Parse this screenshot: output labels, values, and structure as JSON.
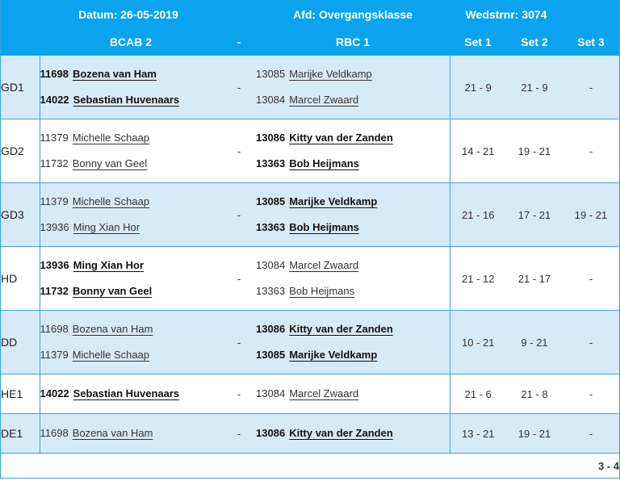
{
  "header": {
    "date": "Datum: 26-05-2019",
    "division": "Afd: Overgangsklasse",
    "match_no": "Wedstrnr: 3074",
    "home_team": "BCAB 2",
    "separator": "-",
    "away_team": "RBC 1",
    "set1": "Set 1",
    "set2": "Set 2",
    "set3": "Set 3"
  },
  "games": [
    {
      "code": "GD1",
      "separator": "-",
      "home": [
        {
          "num": "11698",
          "name": "Bozena van Ham",
          "win": true
        },
        {
          "num": "14022",
          "name": "Sebastian Huvenaars",
          "win": true
        }
      ],
      "away": [
        {
          "num": "13085",
          "name": "Marijke Veldkamp",
          "win": false
        },
        {
          "num": "13084",
          "name": "Marcel Zwaard",
          "win": false
        }
      ],
      "sets": [
        "21 - 9",
        "21 - 9",
        "-"
      ]
    },
    {
      "code": "GD2",
      "separator": "-",
      "home": [
        {
          "num": "11379",
          "name": "Michelle Schaap",
          "win": false
        },
        {
          "num": "11732",
          "name": "Bonny van Geel",
          "win": false
        }
      ],
      "away": [
        {
          "num": "13086",
          "name": "Kitty van der Zanden",
          "win": true
        },
        {
          "num": "13363",
          "name": "Bob Heijmans",
          "win": true
        }
      ],
      "sets": [
        "14 - 21",
        "19 - 21",
        "-"
      ]
    },
    {
      "code": "GD3",
      "separator": "-",
      "home": [
        {
          "num": "11379",
          "name": "Michelle Schaap",
          "win": false
        },
        {
          "num": "13936",
          "name": "Ming Xian Hor",
          "win": false
        }
      ],
      "away": [
        {
          "num": "13085",
          "name": "Marijke Veldkamp",
          "win": true
        },
        {
          "num": "13363",
          "name": "Bob Heijmans",
          "win": true
        }
      ],
      "sets": [
        "21 - 16",
        "17 - 21",
        "19 - 21"
      ]
    },
    {
      "code": "HD",
      "separator": "-",
      "home": [
        {
          "num": "13936",
          "name": "Ming Xian Hor",
          "win": true
        },
        {
          "num": "11732",
          "name": "Bonny van Geel",
          "win": true
        }
      ],
      "away": [
        {
          "num": "13084",
          "name": "Marcel Zwaard",
          "win": false
        },
        {
          "num": "13363",
          "name": "Bob Heijmans",
          "win": false
        }
      ],
      "sets": [
        "21 - 12",
        "21 - 17",
        "-"
      ]
    },
    {
      "code": "DD",
      "separator": "-",
      "home": [
        {
          "num": "11698",
          "name": "Bozena van Ham",
          "win": false
        },
        {
          "num": "11379",
          "name": "Michelle Schaap",
          "win": false
        }
      ],
      "away": [
        {
          "num": "13086",
          "name": "Kitty van der Zanden",
          "win": true
        },
        {
          "num": "13085",
          "name": "Marijke Veldkamp",
          "win": true
        }
      ],
      "sets": [
        "10 - 21",
        "9 - 21",
        "-"
      ]
    },
    {
      "code": "HE1",
      "separator": "-",
      "home": [
        {
          "num": "14022",
          "name": "Sebastian Huvenaars",
          "win": true
        }
      ],
      "away": [
        {
          "num": "13084",
          "name": "Marcel Zwaard",
          "win": false
        }
      ],
      "sets": [
        "21 - 6",
        "21 - 8",
        "-"
      ]
    },
    {
      "code": "DE1",
      "separator": "-",
      "home": [
        {
          "num": "11698",
          "name": "Bozena van Ham",
          "win": false
        }
      ],
      "away": [
        {
          "num": "13086",
          "name": "Kitty van der Zanden",
          "win": true
        }
      ],
      "sets": [
        "13 - 21",
        "19 - 21",
        "-"
      ]
    }
  ],
  "total_score": "3 - 4"
}
